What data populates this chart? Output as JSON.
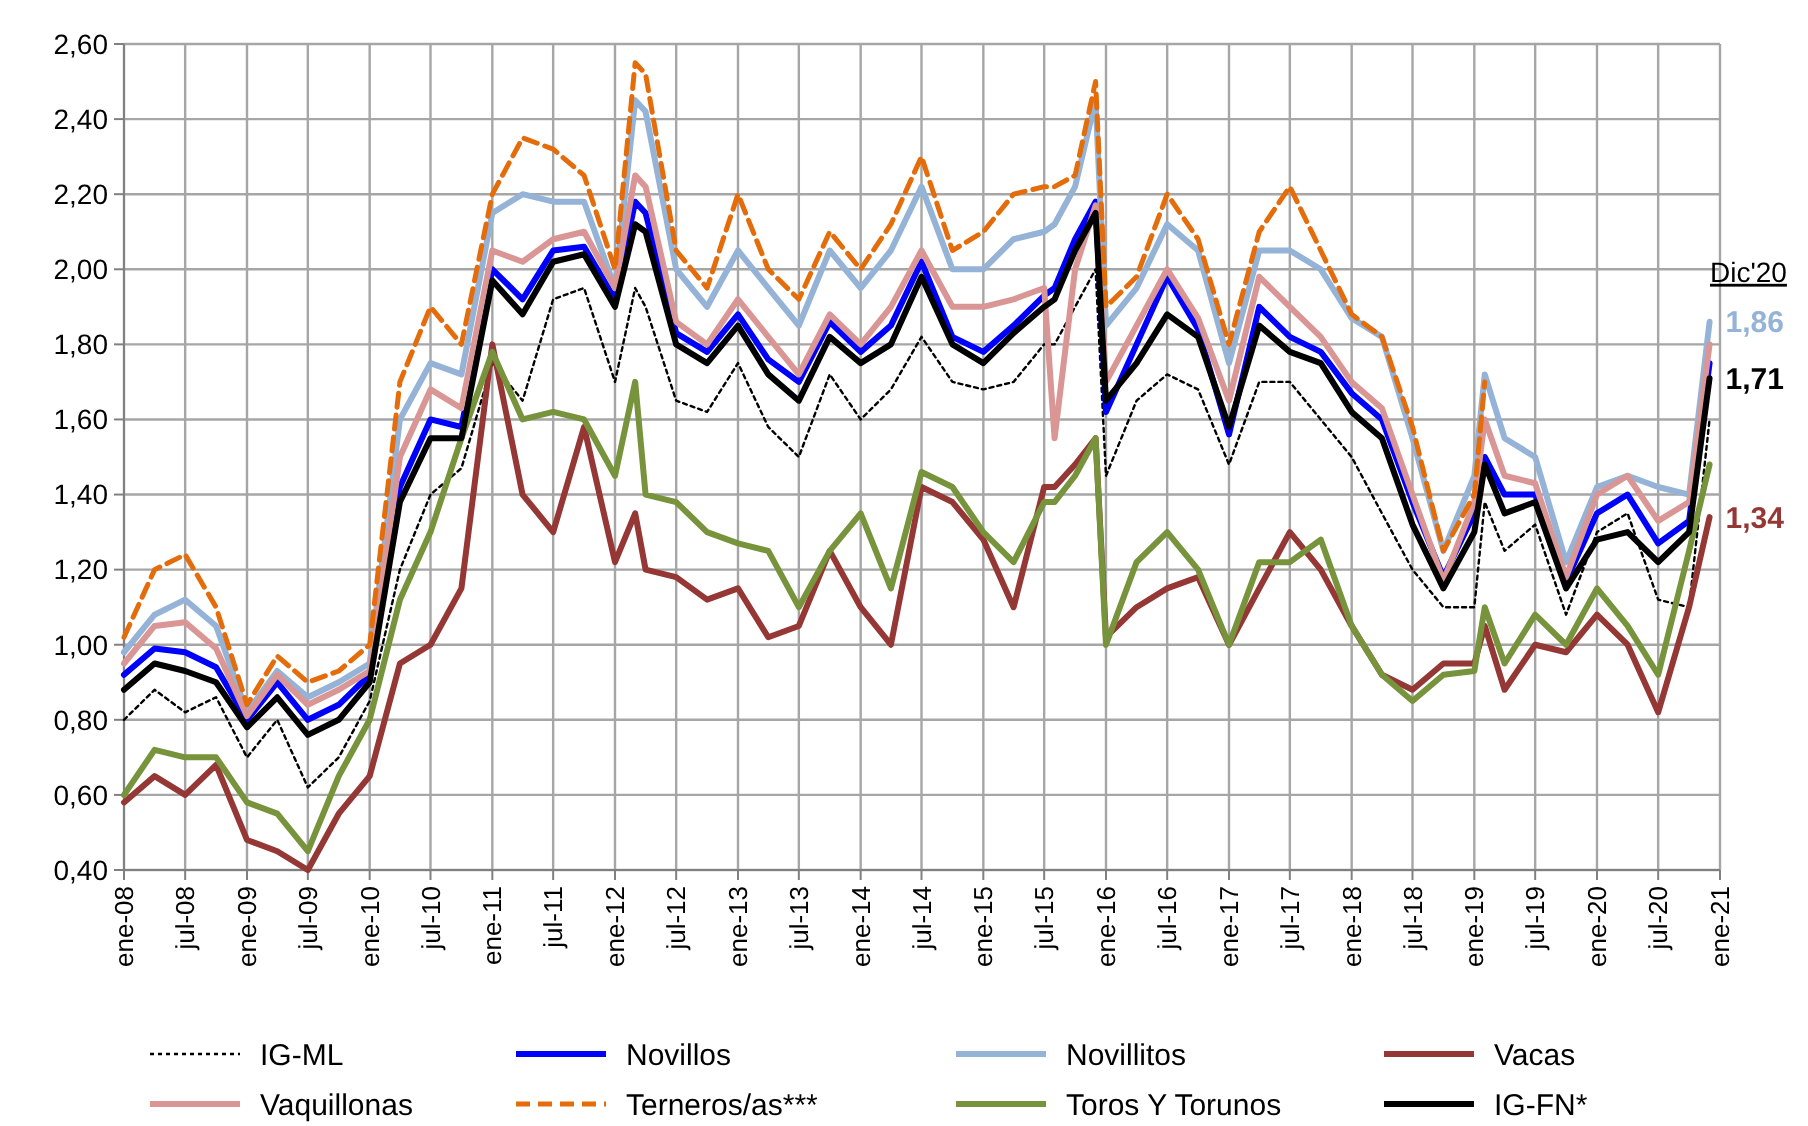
{
  "chart_data": {
    "type": "line",
    "x": [
      "2008-01",
      "2008-04",
      "2008-07",
      "2008-10",
      "2009-01",
      "2009-04",
      "2009-07",
      "2009-10",
      "2010-01",
      "2010-04",
      "2010-07",
      "2010-10",
      "2011-01",
      "2011-04",
      "2011-07",
      "2011-10",
      "2012-01",
      "2012-03",
      "2012-04",
      "2012-07",
      "2012-10",
      "2013-01",
      "2013-04",
      "2013-07",
      "2013-10",
      "2014-01",
      "2014-04",
      "2014-07",
      "2014-10",
      "2015-01",
      "2015-04",
      "2015-07",
      "2015-08",
      "2015-10",
      "2015-12",
      "2016-01",
      "2016-04",
      "2016-07",
      "2016-10",
      "2017-01",
      "2017-04",
      "2017-07",
      "2017-10",
      "2018-01",
      "2018-04",
      "2018-07",
      "2018-10",
      "2019-01",
      "2019-02",
      "2019-04",
      "2019-07",
      "2019-10",
      "2020-01",
      "2020-04",
      "2020-07",
      "2020-10",
      "2020-12"
    ],
    "xlim": [
      "2008-01",
      "2021-01"
    ],
    "xticks": [
      {
        "value": "2008-01",
        "label": "ene-08"
      },
      {
        "value": "2008-07",
        "label": "jul-08"
      },
      {
        "value": "2009-01",
        "label": "ene-09"
      },
      {
        "value": "2009-07",
        "label": "jul-09"
      },
      {
        "value": "2010-01",
        "label": "ene-10"
      },
      {
        "value": "2010-07",
        "label": "jul-10"
      },
      {
        "value": "2011-01",
        "label": "ene-11"
      },
      {
        "value": "2011-07",
        "label": "jul-11"
      },
      {
        "value": "2012-01",
        "label": "ene-12"
      },
      {
        "value": "2012-07",
        "label": "jul-12"
      },
      {
        "value": "2013-01",
        "label": "ene-13"
      },
      {
        "value": "2013-07",
        "label": "jul-13"
      },
      {
        "value": "2014-01",
        "label": "ene-14"
      },
      {
        "value": "2014-07",
        "label": "jul-14"
      },
      {
        "value": "2015-01",
        "label": "ene-15"
      },
      {
        "value": "2015-07",
        "label": "jul-15"
      },
      {
        "value": "2016-01",
        "label": "ene-16"
      },
      {
        "value": "2016-07",
        "label": "jul-16"
      },
      {
        "value": "2017-01",
        "label": "ene-17"
      },
      {
        "value": "2017-07",
        "label": "jul-17"
      },
      {
        "value": "2018-01",
        "label": "ene-18"
      },
      {
        "value": "2018-07",
        "label": "jul-18"
      },
      {
        "value": "2019-01",
        "label": "ene-19"
      },
      {
        "value": "2019-07",
        "label": "jul-19"
      },
      {
        "value": "2020-01",
        "label": "ene-20"
      },
      {
        "value": "2020-07",
        "label": "jul-20"
      },
      {
        "value": "2021-01",
        "label": "ene-21"
      }
    ],
    "ylim": [
      0.4,
      2.6
    ],
    "yticks": [
      {
        "value": 0.4,
        "label": "0,40"
      },
      {
        "value": 0.6,
        "label": "0,60"
      },
      {
        "value": 0.8,
        "label": "0,80"
      },
      {
        "value": 1.0,
        "label": "1,00"
      },
      {
        "value": 1.2,
        "label": "1,20"
      },
      {
        "value": 1.4,
        "label": "1,40"
      },
      {
        "value": 1.6,
        "label": "1,60"
      },
      {
        "value": 1.8,
        "label": "1,80"
      },
      {
        "value": 2.0,
        "label": "2,00"
      },
      {
        "value": 2.2,
        "label": "2,20"
      },
      {
        "value": 2.4,
        "label": "2,40"
      },
      {
        "value": 2.6,
        "label": "2,60"
      }
    ],
    "grid": true,
    "legend": "bottom",
    "marker": "none",
    "series": [
      {
        "name": "IG-ML",
        "color": "#000000",
        "line_style": "dotted",
        "values": [
          0.8,
          0.88,
          0.82,
          0.86,
          0.7,
          0.8,
          0.62,
          0.7,
          0.85,
          1.2,
          1.4,
          1.47,
          1.75,
          1.65,
          1.92,
          1.95,
          1.7,
          1.95,
          1.9,
          1.65,
          1.62,
          1.75,
          1.58,
          1.5,
          1.72,
          1.6,
          1.68,
          1.82,
          1.7,
          1.68,
          1.7,
          1.8,
          1.8,
          1.9,
          2.0,
          1.45,
          1.65,
          1.72,
          1.68,
          1.48,
          1.7,
          1.7,
          1.6,
          1.5,
          1.35,
          1.2,
          1.1,
          1.1,
          1.38,
          1.25,
          1.32,
          1.08,
          1.3,
          1.35,
          1.12,
          1.1,
          1.6
        ]
      },
      {
        "name": "Novillos",
        "color": "#0000ff",
        "line_style": "solid",
        "values": [
          0.92,
          0.99,
          0.98,
          0.94,
          0.8,
          0.9,
          0.8,
          0.84,
          0.92,
          1.42,
          1.6,
          1.58,
          2.0,
          1.92,
          2.05,
          2.06,
          1.92,
          2.18,
          2.15,
          1.83,
          1.78,
          1.88,
          1.76,
          1.7,
          1.86,
          1.78,
          1.85,
          2.02,
          1.82,
          1.78,
          1.85,
          1.93,
          1.95,
          2.08,
          2.18,
          1.62,
          1.8,
          1.98,
          1.84,
          1.56,
          1.9,
          1.82,
          1.78,
          1.67,
          1.6,
          1.38,
          1.18,
          1.35,
          1.5,
          1.4,
          1.4,
          1.17,
          1.35,
          1.4,
          1.27,
          1.33,
          1.75
        ]
      },
      {
        "name": "Novillitos",
        "color": "#95b3d7",
        "line_style": "solid",
        "values": [
          0.98,
          1.08,
          1.12,
          1.05,
          0.82,
          0.93,
          0.86,
          0.9,
          0.95,
          1.6,
          1.75,
          1.72,
          2.15,
          2.2,
          2.18,
          2.18,
          1.95,
          2.45,
          2.42,
          2.0,
          1.9,
          2.05,
          1.95,
          1.85,
          2.05,
          1.95,
          2.05,
          2.22,
          2.0,
          2.0,
          2.08,
          2.1,
          2.12,
          2.22,
          2.45,
          1.85,
          1.95,
          2.12,
          2.05,
          1.75,
          2.05,
          2.05,
          2.0,
          1.87,
          1.82,
          1.55,
          1.25,
          1.45,
          1.72,
          1.55,
          1.5,
          1.22,
          1.42,
          1.45,
          1.42,
          1.4,
          1.86
        ]
      },
      {
        "name": "Vacas",
        "color": "#953735",
        "line_style": "solid",
        "values": [
          0.58,
          0.65,
          0.6,
          0.68,
          0.48,
          0.45,
          0.4,
          0.55,
          0.65,
          0.95,
          1.0,
          1.15,
          1.8,
          1.4,
          1.3,
          1.58,
          1.22,
          1.35,
          1.2,
          1.18,
          1.12,
          1.15,
          1.02,
          1.05,
          1.25,
          1.1,
          1.0,
          1.42,
          1.38,
          1.28,
          1.1,
          1.42,
          1.42,
          1.48,
          1.55,
          1.02,
          1.1,
          1.15,
          1.18,
          1.0,
          1.15,
          1.3,
          1.2,
          1.05,
          0.92,
          0.88,
          0.95,
          0.95,
          1.05,
          0.88,
          1.0,
          0.98,
          1.08,
          1.0,
          0.82,
          1.1,
          1.34
        ]
      },
      {
        "name": "Vaquillonas",
        "color": "#d99694",
        "line_style": "solid",
        "values": [
          0.95,
          1.05,
          1.06,
          0.99,
          0.81,
          0.92,
          0.84,
          0.88,
          0.93,
          1.5,
          1.68,
          1.63,
          2.05,
          2.02,
          2.08,
          2.1,
          1.95,
          2.25,
          2.22,
          1.86,
          1.8,
          1.92,
          1.82,
          1.72,
          1.88,
          1.8,
          1.9,
          2.05,
          1.9,
          1.9,
          1.92,
          1.95,
          1.55,
          2.0,
          2.17,
          1.7,
          1.85,
          2.0,
          1.87,
          1.65,
          1.98,
          1.9,
          1.82,
          1.7,
          1.63,
          1.4,
          1.17,
          1.38,
          1.6,
          1.45,
          1.43,
          1.18,
          1.4,
          1.45,
          1.33,
          1.38,
          1.8
        ]
      },
      {
        "name": "Terneros/as***",
        "color": "#e46c0a",
        "line_style": "dashed",
        "values": [
          1.02,
          1.2,
          1.24,
          1.1,
          0.84,
          0.97,
          0.9,
          0.93,
          1.0,
          1.7,
          1.9,
          1.8,
          2.2,
          2.35,
          2.32,
          2.25,
          2.0,
          2.55,
          2.52,
          2.05,
          1.95,
          2.2,
          2.0,
          1.92,
          2.1,
          2.0,
          2.12,
          2.3,
          2.05,
          2.1,
          2.2,
          2.22,
          2.22,
          2.25,
          2.5,
          1.9,
          1.98,
          2.2,
          2.08,
          1.8,
          2.1,
          2.22,
          2.05,
          1.88,
          1.82,
          1.58,
          1.25,
          1.4,
          1.7,
          null,
          null,
          null,
          null,
          null,
          null,
          null,
          null
        ]
      },
      {
        "name": "Toros Y Torunos",
        "color": "#77933c",
        "line_style": "solid",
        "values": [
          0.6,
          0.72,
          0.7,
          0.7,
          0.58,
          0.55,
          0.45,
          0.65,
          0.8,
          1.12,
          1.3,
          1.55,
          1.78,
          1.6,
          1.62,
          1.6,
          1.45,
          1.7,
          1.4,
          1.38,
          1.3,
          1.27,
          1.25,
          1.1,
          1.25,
          1.35,
          1.15,
          1.46,
          1.42,
          1.3,
          1.22,
          1.38,
          1.38,
          1.45,
          1.55,
          1.0,
          1.22,
          1.3,
          1.2,
          1.0,
          1.22,
          1.22,
          1.28,
          1.05,
          0.92,
          0.85,
          0.92,
          0.93,
          1.1,
          0.95,
          1.08,
          1.0,
          1.15,
          1.05,
          0.92,
          1.25,
          1.48
        ]
      },
      {
        "name": "IG-FN*",
        "color": "#000000",
        "line_style": "solid",
        "values": [
          0.88,
          0.95,
          0.93,
          0.9,
          0.78,
          0.86,
          0.76,
          0.8,
          0.9,
          1.38,
          1.55,
          1.55,
          1.97,
          1.88,
          2.02,
          2.04,
          1.9,
          2.12,
          2.1,
          1.8,
          1.75,
          1.85,
          1.72,
          1.65,
          1.82,
          1.75,
          1.8,
          1.98,
          1.8,
          1.75,
          1.83,
          1.9,
          1.92,
          2.05,
          2.15,
          1.65,
          1.75,
          1.88,
          1.82,
          1.58,
          1.85,
          1.78,
          1.75,
          1.62,
          1.55,
          1.32,
          1.15,
          1.3,
          1.48,
          1.35,
          1.38,
          1.15,
          1.28,
          1.3,
          1.22,
          1.3,
          1.71
        ]
      }
    ],
    "annotations": [
      "Dic'20",
      {
        "text": "1,86",
        "x": "2020-12",
        "y": 1.86
      },
      {
        "text": "1,71",
        "x": "2020-12",
        "y": 1.71
      },
      {
        "text": "1,34",
        "x": "2020-12",
        "y": 1.34
      }
    ]
  }
}
